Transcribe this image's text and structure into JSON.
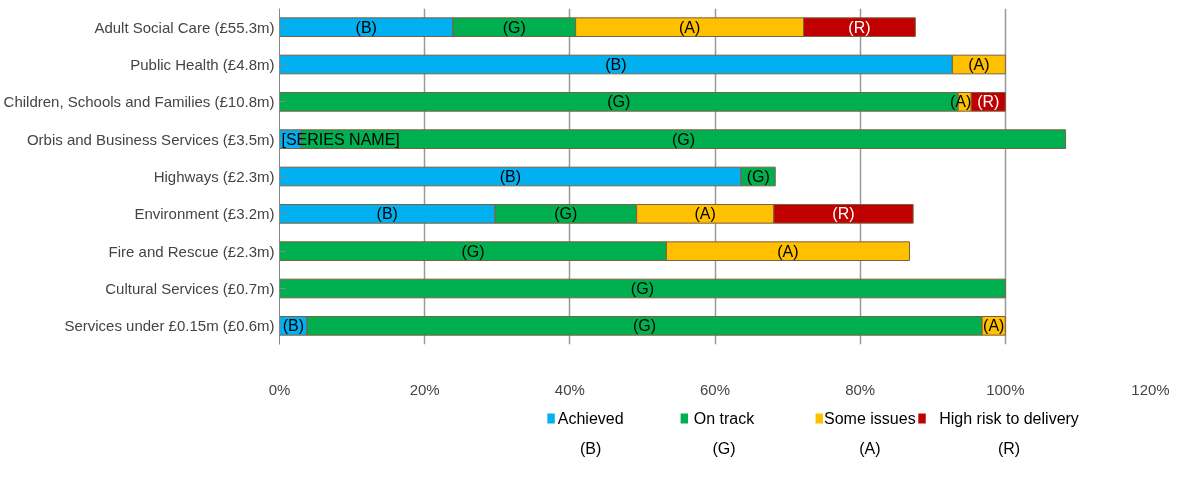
{
  "chart_data": {
    "type": "bar",
    "orientation": "horizontal",
    "stacked": true,
    "categories": [
      "Adult Social Care (£55.3m)",
      "Public Health (£4.8m)",
      "Children, Schools and Families (£10.8m)",
      "Orbis and Business Services (£3.5m)",
      "Highways (£2.3m)",
      "Environment (£3.2m)",
      "Fire and Rescue (£2.3m)",
      "Cultural Services (£0.7m)",
      "Services under £0.15m (£0.6m)"
    ],
    "series": [
      {
        "name": "Achieved (B)",
        "color": "#00b0f0",
        "values": [
          23.9,
          92.7,
          null,
          3.0,
          63.6,
          29.7,
          null,
          null,
          3.8
        ],
        "value_labels": [
          "(B)",
          "(B)",
          null,
          "[SERIES NAME]",
          "(B)",
          "(B)",
          null,
          null,
          "(B)"
        ]
      },
      {
        "name": "On track (G)",
        "color": "#00b050",
        "values": [
          16.9,
          null,
          93.5,
          105.3,
          4.7,
          19.5,
          53.3,
          100,
          93.0
        ],
        "value_labels": [
          "(G)",
          null,
          "(G)",
          "(G)",
          "(G)",
          "(G)",
          "(G)",
          "(G)",
          "(G)"
        ]
      },
      {
        "name": "Some issues (A)",
        "color": "#ffc000",
        "values": [
          31.4,
          7.3,
          1.8,
          null,
          null,
          18.9,
          33.5,
          null,
          3.2
        ],
        "value_labels": [
          "(A)",
          "(A)",
          "(A)",
          null,
          null,
          "(A)",
          "(A)",
          null,
          "(A)"
        ]
      },
      {
        "name": "High risk to delivery (R)",
        "color": "#c00000",
        "values": [
          15.4,
          null,
          4.7,
          null,
          null,
          19.2,
          null,
          null,
          null
        ],
        "value_labels": [
          "(R)",
          null,
          "(R)",
          null,
          null,
          "(R)",
          null,
          null,
          null
        ]
      }
    ],
    "xlim": [
      0,
      120
    ],
    "xticks": [
      {
        "value": 0,
        "label": "0%"
      },
      {
        "value": 20,
        "label": "20%"
      },
      {
        "value": 40,
        "label": "40%"
      },
      {
        "value": 60,
        "label": "60%"
      },
      {
        "value": 80,
        "label": "80%"
      },
      {
        "value": 100,
        "label": "100%"
      },
      {
        "value": 120,
        "label": "120%"
      }
    ],
    "grid": "x",
    "legend": "bottom"
  }
}
